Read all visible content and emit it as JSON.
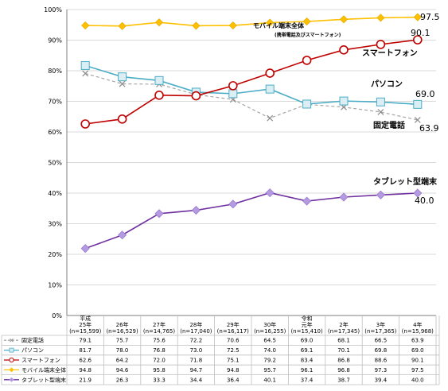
{
  "chart_data": {
    "type": "line",
    "ylim": [
      0,
      100
    ],
    "ytick_labels": [
      "0%",
      "10%",
      "20%",
      "30%",
      "40%",
      "50%",
      "60%",
      "70%",
      "80%",
      "90%",
      "100%"
    ],
    "grid": true,
    "columns": [
      {
        "label": [
          "平成",
          "25年",
          "(n=15,599)"
        ]
      },
      {
        "label": [
          "26年",
          "(n=16,529)"
        ]
      },
      {
        "label": [
          "27年",
          "(n=14,765)"
        ]
      },
      {
        "label": [
          "28年",
          "(n=17,040)"
        ]
      },
      {
        "label": [
          "29年",
          "(n=16,117)"
        ]
      },
      {
        "label": [
          "30年",
          "(n=16,255)"
        ]
      },
      {
        "label": [
          "令和",
          "元年",
          "(n=15,410)"
        ]
      },
      {
        "label": [
          "2年",
          "(n=17,345)"
        ]
      },
      {
        "label": [
          "3年",
          "(n=17,365)"
        ]
      },
      {
        "label": [
          "4年",
          "(n=15,968)"
        ]
      }
    ],
    "series": [
      {
        "name": "固定電話",
        "color": "#a6a6a6",
        "dashed": true,
        "marker": "x",
        "values": [
          79.1,
          75.7,
          75.6,
          72.2,
          70.6,
          64.5,
          69.0,
          68.1,
          66.5,
          63.9
        ],
        "values_text": [
          "79.1",
          "75.7",
          "75.6",
          "72.2",
          "70.6",
          "64.5",
          "69.0",
          "68.1",
          "66.5",
          "63.9"
        ]
      },
      {
        "name": "パソコン",
        "color": "#4bacc6",
        "dashed": false,
        "marker": "square",
        "values": [
          81.7,
          78.0,
          76.8,
          73.0,
          72.5,
          74.0,
          69.1,
          70.1,
          69.8,
          69.0
        ],
        "values_text": [
          "81.7",
          "78.0",
          "76.8",
          "73.0",
          "72.5",
          "74.0",
          "69.1",
          "70.1",
          "69.8",
          "69.0"
        ]
      },
      {
        "name": "スマートフォン",
        "color": "#c00000",
        "dashed": false,
        "marker": "circle",
        "values": [
          62.6,
          64.2,
          72.0,
          71.8,
          75.1,
          79.2,
          83.4,
          86.8,
          88.6,
          90.1
        ],
        "values_text": [
          "62.6",
          "64.2",
          "72.0",
          "71.8",
          "75.1",
          "79.2",
          "83.4",
          "86.8",
          "88.6",
          "90.1"
        ]
      },
      {
        "name": "モバイル端末全体",
        "color": "#ffc000",
        "dashed": false,
        "marker": "diamond",
        "values": [
          94.8,
          94.6,
          95.8,
          94.7,
          94.8,
          95.7,
          96.1,
          96.8,
          97.3,
          97.5
        ],
        "values_text": [
          "94.8",
          "94.6",
          "95.8",
          "94.7",
          "94.8",
          "95.7",
          "96.1",
          "96.8",
          "97.3",
          "97.5"
        ]
      },
      {
        "name": "タブレット型端末",
        "color": "#7030a0",
        "dashed": false,
        "marker": "diamond",
        "values": [
          21.9,
          26.3,
          33.3,
          34.4,
          36.4,
          40.1,
          37.4,
          38.7,
          39.4,
          40.0
        ],
        "values_text": [
          "21.9",
          "26.3",
          "33.3",
          "34.4",
          "36.4",
          "40.1",
          "37.4",
          "38.7",
          "39.4",
          "40.0"
        ]
      }
    ],
    "annotations": {
      "mobile": {
        "label": "モバイル端末全体",
        "sublabel": "(携帯電話及びスマートフォン)",
        "end_value": "97.5"
      },
      "smartphone": {
        "label": "スマートフォン",
        "end_value": "90.1"
      },
      "pc": {
        "label": "パソコン",
        "end_value": "69.0"
      },
      "landline": {
        "label": "固定電話",
        "end_value": "63.9"
      },
      "tablet": {
        "label": "タブレット型端末",
        "end_value": "40.0"
      }
    }
  }
}
